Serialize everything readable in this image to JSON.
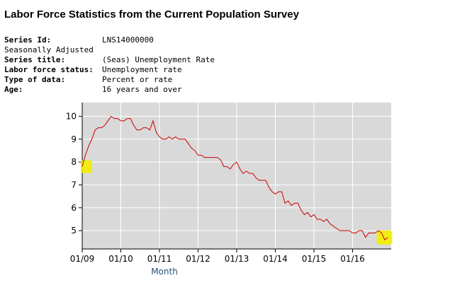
{
  "page": {
    "title": "Labor Force Statistics from the Current Population Survey"
  },
  "meta": {
    "rows": [
      {
        "key": "Series Id:",
        "value": "LNS14000000",
        "bold": true
      },
      {
        "key": "Seasonally Adjusted",
        "value": "",
        "bold": false
      },
      {
        "key": "Series title:",
        "value": "(Seas) Unemployment Rate",
        "bold": true
      },
      {
        "key": "Labor force status:",
        "value": "Unemployment rate",
        "bold": true
      },
      {
        "key": "Type of data:",
        "value": "Percent or rate",
        "bold": true
      },
      {
        "key": "Age:",
        "value": "16 years and over",
        "bold": true
      }
    ]
  },
  "colors": {
    "plot_bg": "#d9d9d9",
    "grid": "#ffffff",
    "line": "#cc0000",
    "axis": "#000000",
    "xlabel": "#1f4e79",
    "highlight": "#f2ee00"
  },
  "chart_data": {
    "type": "line",
    "title": "",
    "xlabel": "Month",
    "ylabel": "",
    "x_start": "2009-01",
    "xlim": [
      0,
      96
    ],
    "ylim": [
      4.2,
      10.6
    ],
    "yticks": [
      5,
      6,
      7,
      8,
      9,
      10
    ],
    "xtick_labels": [
      "01/09",
      "01/10",
      "01/11",
      "01/12",
      "01/13",
      "01/14",
      "01/15",
      "01/16"
    ],
    "xtick_positions": [
      0,
      12,
      24,
      36,
      48,
      60,
      72,
      84
    ],
    "series": [
      {
        "name": "(Seas) Unemployment Rate",
        "values": [
          7.8,
          8.3,
          8.7,
          9.0,
          9.4,
          9.5,
          9.5,
          9.6,
          9.8,
          10.0,
          9.9,
          9.9,
          9.8,
          9.8,
          9.9,
          9.9,
          9.6,
          9.4,
          9.4,
          9.5,
          9.5,
          9.4,
          9.8,
          9.3,
          9.1,
          9.0,
          9.0,
          9.1,
          9.0,
          9.1,
          9.0,
          9.0,
          9.0,
          8.8,
          8.6,
          8.5,
          8.3,
          8.3,
          8.2,
          8.2,
          8.2,
          8.2,
          8.2,
          8.1,
          7.8,
          7.8,
          7.7,
          7.9,
          8.0,
          7.7,
          7.5,
          7.6,
          7.5,
          7.5,
          7.3,
          7.2,
          7.2,
          7.2,
          6.9,
          6.7,
          6.6,
          6.7,
          6.7,
          6.2,
          6.3,
          6.1,
          6.2,
          6.2,
          5.9,
          5.7,
          5.8,
          5.6,
          5.7,
          5.5,
          5.5,
          5.4,
          5.5,
          5.3,
          5.2,
          5.1,
          5.0,
          5.0,
          5.0,
          5.0,
          4.9,
          4.9,
          5.0,
          5.0,
          4.7,
          4.9,
          4.9,
          4.9,
          5.0,
          4.9,
          4.6,
          4.7
        ]
      }
    ],
    "highlights": [
      "first-point",
      "last-point"
    ]
  }
}
